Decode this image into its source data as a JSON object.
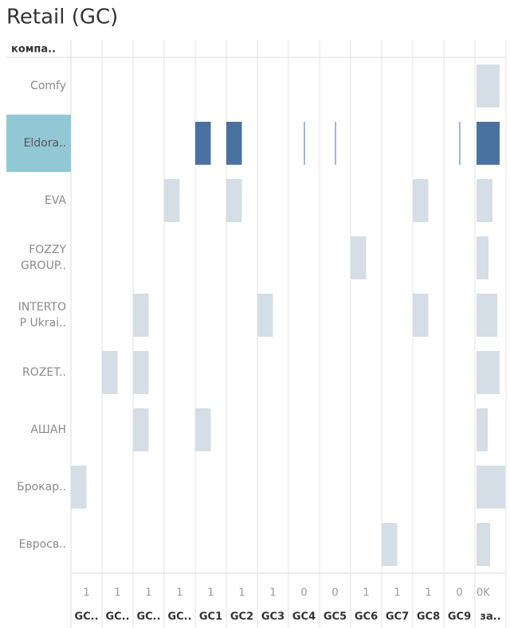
{
  "chart_data": {
    "type": "bar",
    "title": "Retail (GC)",
    "row_header": "компа..",
    "categories": [
      [
        "Comfy"
      ],
      [
        "Eldora.."
      ],
      [
        "EVA"
      ],
      [
        "FOZZY",
        "GROUP.."
      ],
      [
        "INTERTO",
        "P Ukrai.."
      ],
      [
        "ROZET.."
      ],
      [
        "АШАН"
      ],
      [
        "Брокар.."
      ],
      [
        "Евросв.."
      ]
    ],
    "selected": 1,
    "color": "#d5dde6",
    "selected_color": "#4a72a0",
    "selected_label_color": "#92c8d6",
    "series": [
      {
        "name": "GC..",
        "xlim": [
          0,
          2
        ],
        "xticks": [
          1
        ],
        "values": [
          null,
          null,
          null,
          null,
          null,
          null,
          null,
          1,
          null
        ]
      },
      {
        "name": "GC..",
        "xlim": [
          0,
          2
        ],
        "xticks": [
          1
        ],
        "values": [
          null,
          null,
          null,
          null,
          null,
          1,
          null,
          null,
          null
        ]
      },
      {
        "name": "GC..",
        "xlim": [
          0,
          2
        ],
        "xticks": [
          1
        ],
        "values": [
          null,
          null,
          null,
          null,
          1,
          1,
          1,
          null,
          null
        ]
      },
      {
        "name": "GC..",
        "xlim": [
          0,
          2
        ],
        "xticks": [
          1
        ],
        "values": [
          null,
          null,
          1,
          null,
          null,
          null,
          null,
          null,
          null
        ]
      },
      {
        "name": "GC1",
        "xlim": [
          0,
          2
        ],
        "xticks": [
          1
        ],
        "values": [
          null,
          1,
          null,
          null,
          null,
          null,
          1,
          null,
          null
        ]
      },
      {
        "name": "GC2",
        "xlim": [
          0,
          2
        ],
        "xticks": [
          1
        ],
        "values": [
          null,
          1,
          1,
          null,
          null,
          null,
          null,
          null,
          null
        ]
      },
      {
        "name": "GC3",
        "xlim": [
          0,
          2
        ],
        "xticks": [
          1
        ],
        "values": [
          null,
          null,
          null,
          null,
          1,
          null,
          null,
          null,
          null
        ]
      },
      {
        "name": "GC4",
        "xlim": [
          -1,
          1
        ],
        "xticks": [
          0
        ],
        "values": [
          null,
          0.03,
          null,
          null,
          null,
          null,
          null,
          null,
          null
        ]
      },
      {
        "name": "GC5",
        "xlim": [
          -1,
          1
        ],
        "xticks": [
          0
        ],
        "values": [
          null,
          0.03,
          null,
          null,
          null,
          null,
          null,
          null,
          null
        ]
      },
      {
        "name": "GC6",
        "xlim": [
          0,
          2
        ],
        "xticks": [
          1
        ],
        "values": [
          null,
          null,
          null,
          1,
          null,
          null,
          null,
          null,
          null
        ]
      },
      {
        "name": "GC7",
        "xlim": [
          0,
          2
        ],
        "xticks": [
          1
        ],
        "values": [
          null,
          null,
          null,
          null,
          null,
          null,
          null,
          null,
          1
        ]
      },
      {
        "name": "GC8",
        "xlim": [
          0,
          2
        ],
        "xticks": [
          1
        ],
        "values": [
          null,
          null,
          1,
          null,
          1,
          null,
          null,
          null,
          null
        ]
      },
      {
        "name": "GC9",
        "xlim": [
          -1,
          1
        ],
        "xticks": [
          0
        ],
        "values": [
          null,
          0.03,
          null,
          null,
          null,
          null,
          null,
          null,
          null
        ]
      },
      {
        "name": "за..",
        "xlim": [
          -2,
          37
        ],
        "xticks": [
          {
            "value": 0,
            "label": "0K"
          }
        ],
        "values": [
          29,
          29,
          20,
          15,
          26,
          29,
          14,
          36,
          17
        ]
      }
    ]
  }
}
